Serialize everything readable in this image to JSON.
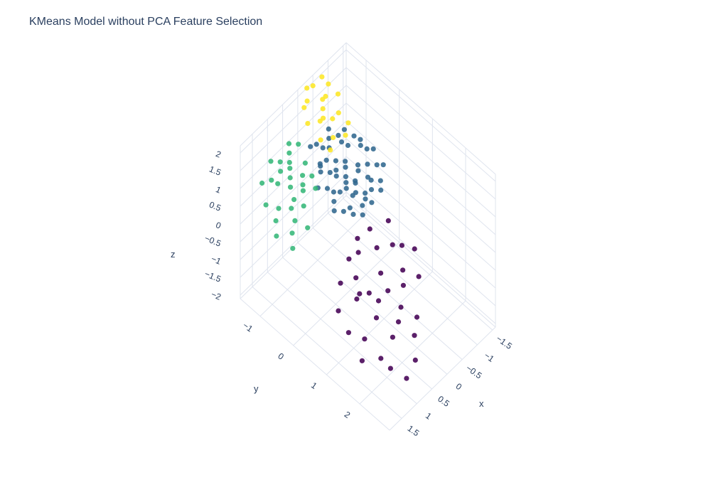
{
  "title": "KMeans Model without PCA Feature Selection",
  "chart_data": {
    "type": "scatter3d",
    "title": "KMeans Model without PCA Feature Selection",
    "xlabel": "x",
    "ylabel": "y",
    "zlabel": "z",
    "xlim": [
      -1.6,
      1.9
    ],
    "ylim": [
      -1.6,
      2.9
    ],
    "zlim": [
      -2.1,
      2.2
    ],
    "x_ticks": [
      -1.5,
      -1,
      -0.5,
      0,
      0.5,
      1,
      1.5
    ],
    "x_tick_labels": [
      "−1.5",
      "−1",
      "−0.5",
      "0",
      "0.5",
      "1",
      "1.5"
    ],
    "y_ticks": [
      -1,
      0,
      1,
      2
    ],
    "y_tick_labels": [
      "−1",
      "0",
      "1",
      "2"
    ],
    "z_ticks": [
      -2,
      -1.5,
      -1,
      -0.5,
      0,
      0.5,
      1,
      1.5,
      2
    ],
    "z_tick_labels": [
      "−2",
      "−1.5",
      "−1",
      "−0.5",
      "0",
      "0.5",
      "1",
      "1.5",
      "2"
    ],
    "grid": true,
    "colors": {
      "cluster_0": "#440154",
      "cluster_1": "#31688e",
      "cluster_2": "#35b779",
      "cluster_3": "#fde725",
      "text": "#2a3f5f",
      "grid": "#dfe4ee"
    },
    "series": [
      {
        "color": "#440154",
        "points": [
          [
            -0.2,
            1.4,
            -1.0
          ],
          [
            0.1,
            1.6,
            -1.2
          ],
          [
            0.4,
            1.2,
            -1.1
          ],
          [
            0.0,
            0.9,
            -0.9
          ],
          [
            0.7,
            1.9,
            -1.3
          ],
          [
            1.1,
            2.2,
            -1.6
          ],
          [
            0.5,
            2.4,
            -1.7
          ],
          [
            -0.5,
            0.8,
            -0.6
          ],
          [
            -0.8,
            0.4,
            -0.5
          ],
          [
            0.3,
            0.5,
            -0.4
          ],
          [
            0.9,
            1.0,
            -0.8
          ],
          [
            1.3,
            1.6,
            -1.1
          ],
          [
            1.5,
            1.3,
            -1.0
          ],
          [
            -0.1,
            1.9,
            -1.4
          ],
          [
            0.6,
            0.7,
            -0.7
          ],
          [
            0.2,
            2.1,
            -1.5
          ],
          [
            -0.4,
            1.2,
            -0.9
          ],
          [
            0.8,
            1.5,
            -1.0
          ],
          [
            1.0,
            0.6,
            -0.6
          ],
          [
            -0.7,
            0.9,
            -0.7
          ],
          [
            0.4,
            1.8,
            -1.2
          ],
          [
            -0.3,
            0.3,
            -0.4
          ],
          [
            1.2,
            2.0,
            -1.4
          ],
          [
            0.0,
            0.2,
            -0.5
          ],
          [
            0.6,
            1.1,
            -0.8
          ],
          [
            -0.6,
            1.5,
            -1.0
          ],
          [
            1.4,
            0.9,
            -0.8
          ],
          [
            0.2,
            1.3,
            -0.9
          ],
          [
            0.9,
            2.5,
            -1.8
          ],
          [
            -0.2,
            0.6,
            -0.6
          ],
          [
            1.6,
            1.8,
            -1.3
          ],
          [
            0.5,
            0.4,
            -0.5
          ],
          [
            -0.9,
            1.1,
            -0.8
          ],
          [
            0.7,
            0.9,
            -0.9
          ]
        ]
      },
      {
        "color": "#31688e",
        "points": [
          [
            -0.8,
            -0.6,
            -0.2
          ],
          [
            -0.5,
            -0.9,
            0.1
          ],
          [
            -1.0,
            -0.3,
            -0.1
          ],
          [
            -0.3,
            -1.2,
            0.2
          ],
          [
            -1.2,
            -0.8,
            0.3
          ],
          [
            -0.6,
            -0.2,
            -0.4
          ],
          [
            -0.9,
            -1.1,
            0.4
          ],
          [
            -0.2,
            -0.7,
            -0.1
          ],
          [
            -1.3,
            -0.4,
            0.0
          ],
          [
            -0.4,
            -0.5,
            0.0
          ],
          [
            -0.7,
            -1.3,
            0.5
          ],
          [
            -1.1,
            -0.1,
            -0.3
          ],
          [
            -0.1,
            -1.0,
            0.3
          ],
          [
            -0.5,
            -0.4,
            -0.2
          ],
          [
            -0.8,
            -0.9,
            0.1
          ],
          [
            -1.4,
            -0.6,
            0.2
          ],
          [
            -0.3,
            -0.3,
            -0.3
          ],
          [
            -0.6,
            -1.0,
            0.2
          ],
          [
            -1.0,
            -0.7,
            0.0
          ],
          [
            -0.2,
            -1.4,
            0.6
          ],
          [
            -0.9,
            -0.2,
            -0.2
          ],
          [
            -0.4,
            -0.8,
            0.1
          ],
          [
            -1.2,
            -1.0,
            0.4
          ],
          [
            -0.7,
            -0.5,
            -0.1
          ],
          [
            -0.1,
            -0.6,
            -0.2
          ],
          [
            -0.5,
            -1.3,
            0.4
          ],
          [
            -1.1,
            -0.5,
            0.1
          ],
          [
            -0.8,
            -0.3,
            -0.3
          ],
          [
            -0.3,
            -0.9,
            0.2
          ],
          [
            -0.6,
            -0.7,
            0.0
          ],
          [
            -1.3,
            -0.9,
            0.3
          ],
          [
            -0.2,
            -0.4,
            -0.4
          ],
          [
            -0.9,
            -1.2,
            0.5
          ],
          [
            -0.4,
            -1.1,
            0.3
          ],
          [
            -1.0,
            -0.4,
            -0.1
          ],
          [
            -0.7,
            -0.8,
            0.1
          ],
          [
            -0.5,
            -0.1,
            -0.5
          ],
          [
            -1.2,
            -0.2,
            -0.2
          ],
          [
            -0.1,
            -0.8,
            0.0
          ],
          [
            -0.8,
            -1.4,
            0.6
          ],
          [
            0.0,
            -0.5,
            -0.3
          ],
          [
            -0.6,
            -0.4,
            -0.2
          ],
          [
            -1.4,
            -0.3,
            0.0
          ],
          [
            -0.3,
            -0.6,
            -0.1
          ],
          [
            -0.9,
            -0.6,
            0.0
          ],
          [
            -0.4,
            -1.4,
            0.5
          ],
          [
            -1.1,
            -1.2,
            0.5
          ],
          [
            -0.7,
            -0.2,
            -0.3
          ],
          [
            -0.2,
            -1.1,
            0.3
          ],
          [
            -1.0,
            -1.0,
            0.3
          ],
          [
            -0.5,
            -0.6,
            0.0
          ],
          [
            0.1,
            -0.9,
            0.1
          ],
          [
            -0.3,
            -0.2,
            -0.4
          ],
          [
            -1.3,
            -0.7,
            0.2
          ],
          [
            -0.6,
            -1.2,
            0.4
          ],
          [
            -0.8,
            -0.1,
            -0.4
          ]
        ]
      },
      {
        "color": "#35b779",
        "points": [
          [
            0.6,
            -1.3,
            0.9
          ],
          [
            0.9,
            -1.0,
            0.7
          ],
          [
            1.2,
            -0.7,
            0.6
          ],
          [
            0.4,
            -1.5,
            1.1
          ],
          [
            1.5,
            -0.4,
            0.4
          ],
          [
            0.8,
            -1.4,
            1.0
          ],
          [
            1.1,
            -1.2,
            0.8
          ],
          [
            0.3,
            -1.1,
            0.8
          ],
          [
            1.4,
            -0.9,
            0.6
          ],
          [
            0.7,
            -0.8,
            0.6
          ],
          [
            1.7,
            -0.2,
            0.3
          ],
          [
            0.5,
            -1.0,
            0.7
          ],
          [
            1.0,
            -1.5,
            1.1
          ],
          [
            1.3,
            -0.5,
            0.5
          ],
          [
            0.2,
            -1.4,
            1.0
          ],
          [
            0.9,
            -0.6,
            0.5
          ],
          [
            1.6,
            -1.1,
            0.7
          ],
          [
            0.6,
            -0.9,
            0.6
          ],
          [
            1.2,
            -1.3,
            0.9
          ],
          [
            0.4,
            -0.7,
            0.5
          ],
          [
            1.8,
            -0.6,
            0.4
          ],
          [
            0.8,
            -1.1,
            0.8
          ],
          [
            1.1,
            -0.3,
            0.3
          ],
          [
            0.5,
            -1.4,
            1.0
          ],
          [
            1.4,
            -1.4,
            0.9
          ],
          [
            0.7,
            -1.2,
            0.9
          ],
          [
            1.0,
            -0.8,
            0.6
          ],
          [
            0.3,
            -0.9,
            0.6
          ],
          [
            1.6,
            -0.8,
            0.5
          ],
          [
            0.9,
            -1.3,
            0.9
          ]
        ]
      },
      {
        "color": "#fde725",
        "points": [
          [
            -0.6,
            -1.4,
            1.6
          ],
          [
            -0.3,
            -1.2,
            1.4
          ],
          [
            -0.9,
            -1.5,
            1.7
          ],
          [
            -0.1,
            -1.0,
            1.2
          ],
          [
            -0.5,
            -1.6,
            1.9
          ],
          [
            -0.8,
            -1.1,
            1.3
          ],
          [
            -0.2,
            -1.5,
            1.8
          ],
          [
            -1.0,
            -1.3,
            1.5
          ],
          [
            -0.4,
            -0.9,
            1.1
          ],
          [
            -0.7,
            -1.4,
            1.6
          ],
          [
            0.0,
            -1.3,
            1.5
          ],
          [
            -0.3,
            -1.6,
            2.0
          ],
          [
            -0.9,
            -0.9,
            1.1
          ],
          [
            -0.6,
            -1.1,
            1.3
          ],
          [
            -0.2,
            -0.8,
            1.0
          ],
          [
            -0.5,
            -1.3,
            1.5
          ],
          [
            -0.8,
            -1.6,
            1.9
          ],
          [
            -0.1,
            -1.5,
            1.7
          ],
          [
            -0.4,
            -1.2,
            1.4
          ],
          [
            -0.7,
            -0.8,
            1.0
          ]
        ]
      }
    ]
  }
}
